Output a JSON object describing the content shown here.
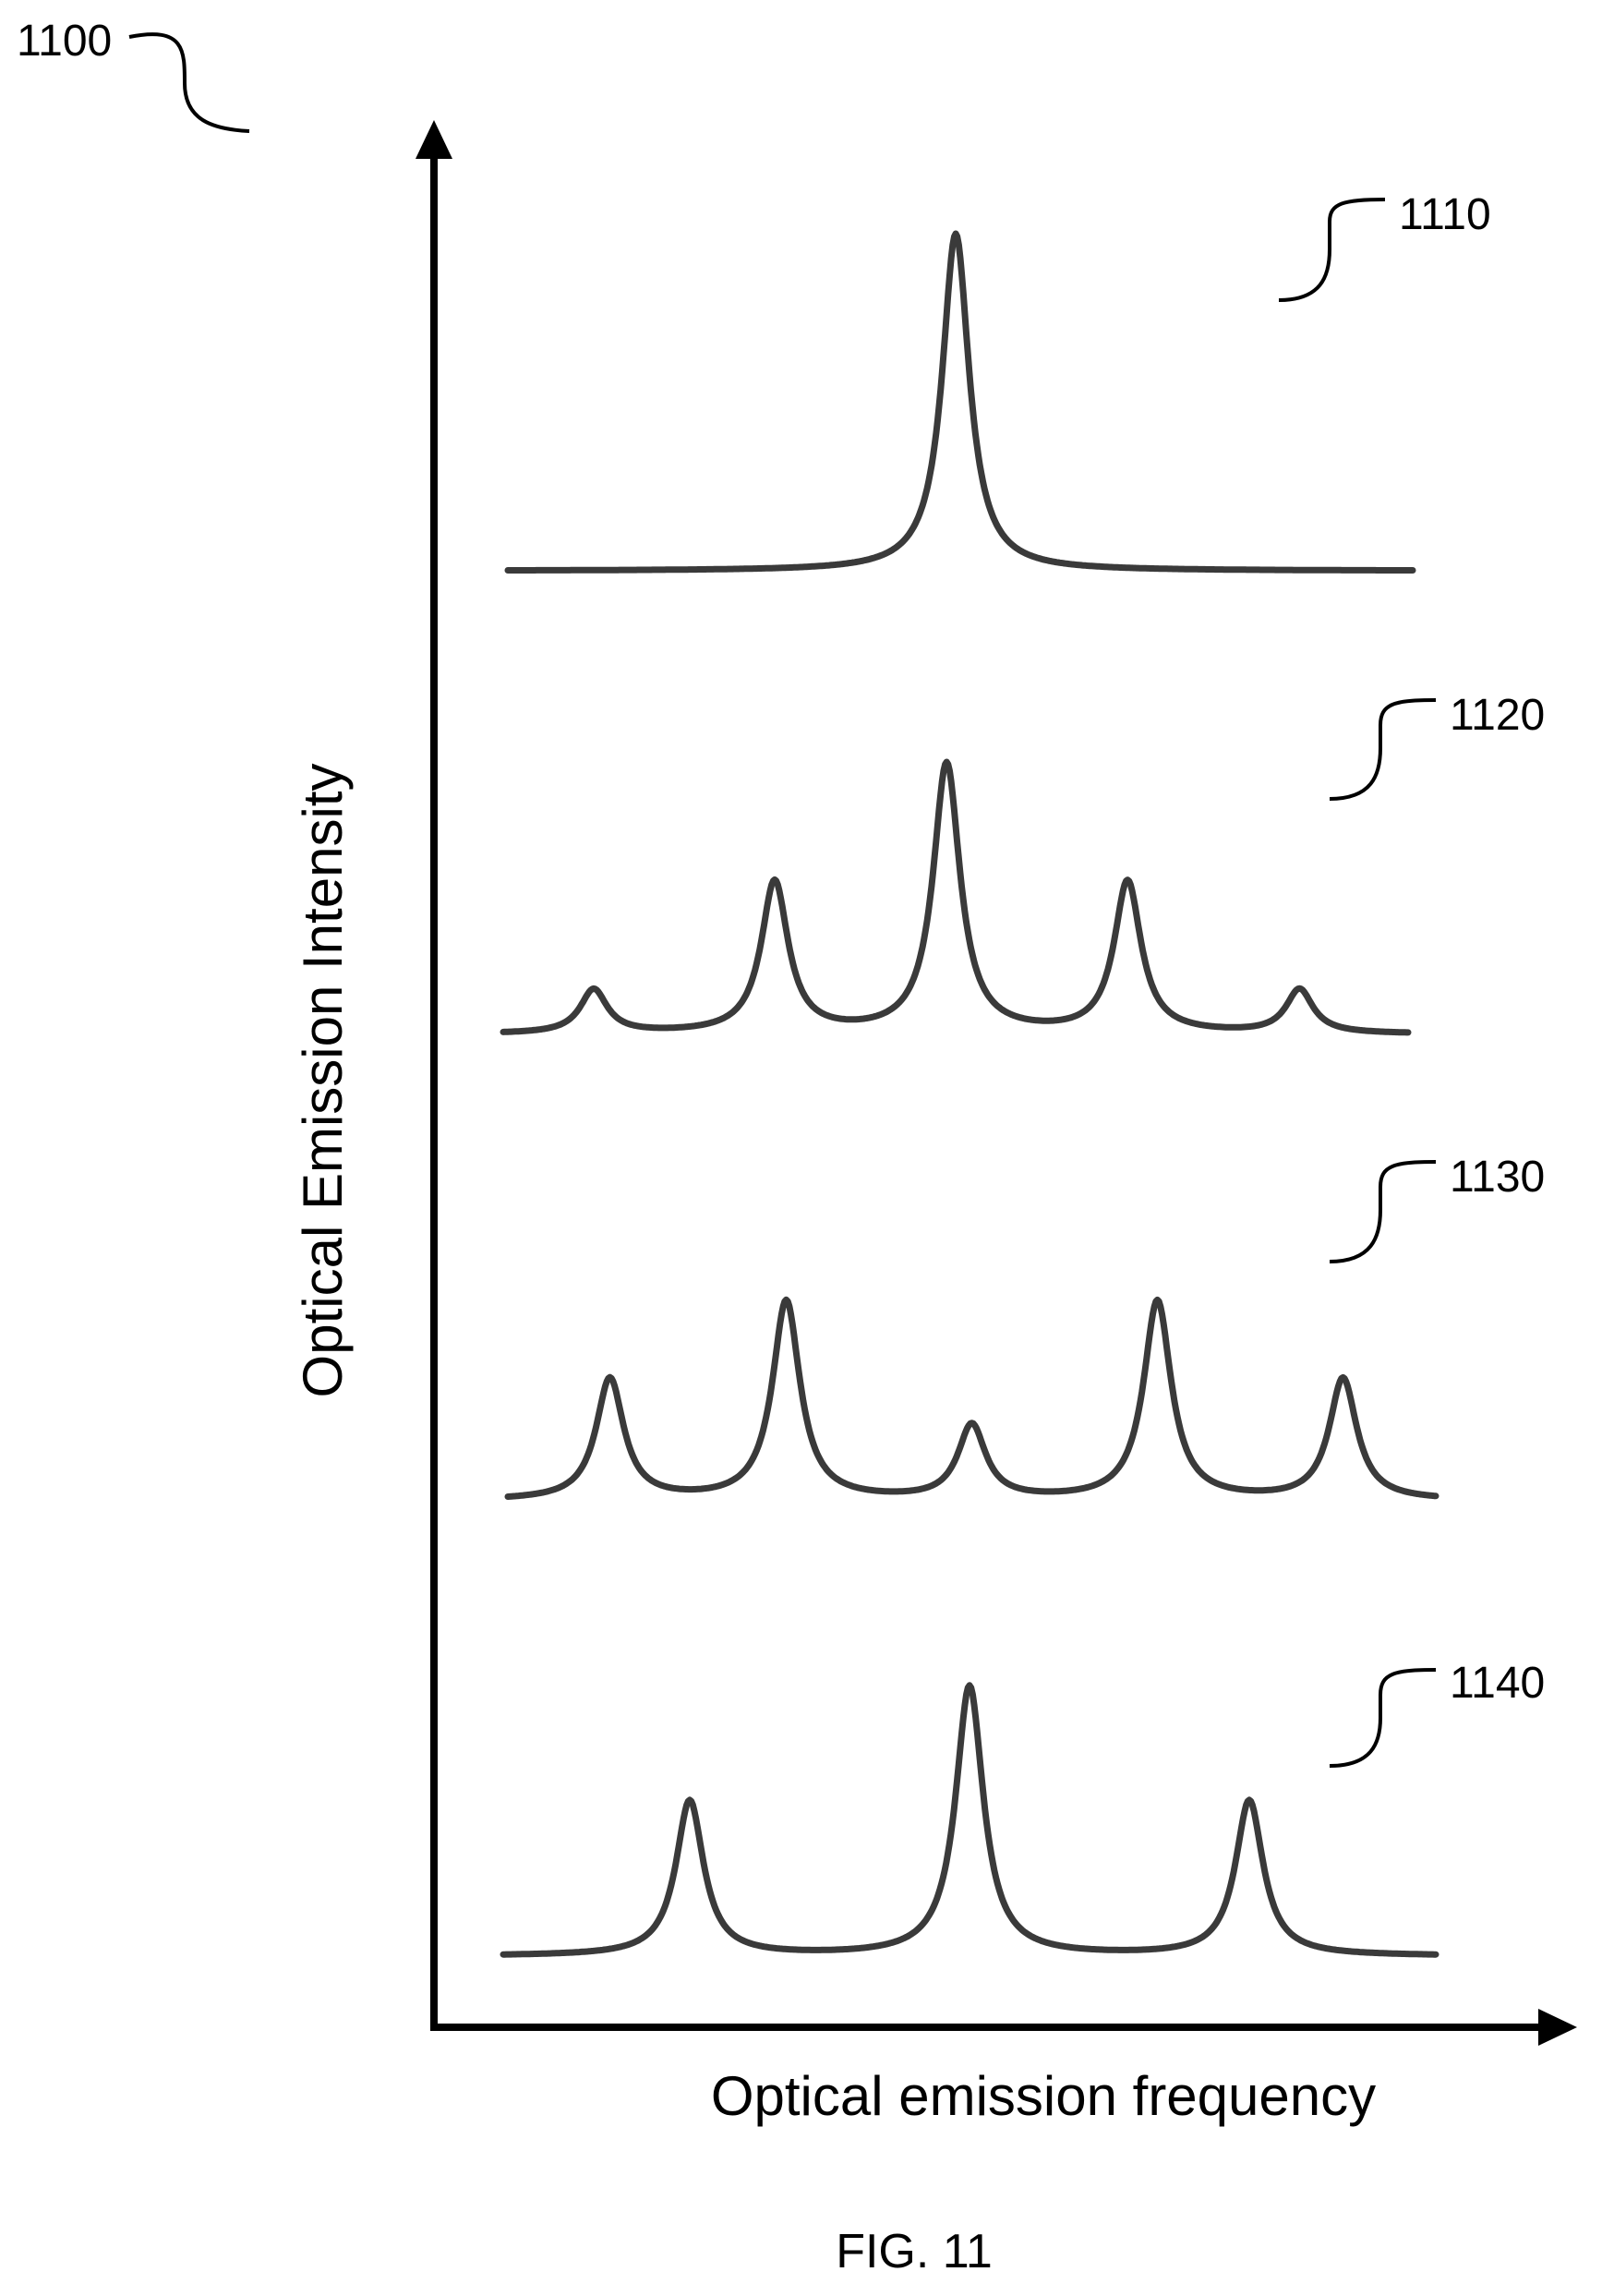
{
  "figure_ref": "1100",
  "figure_caption": "FIG. 11",
  "x_axis_label": "Optical emission frequency",
  "y_axis_label": "Optical Emission Intensity",
  "spectra": [
    {
      "ref": "1110",
      "peaks": [
        {
          "center": 0.495,
          "height": 1.0
        }
      ]
    },
    {
      "ref": "1120",
      "peaks": [
        {
          "center": 0.1,
          "height": 0.13
        },
        {
          "center": 0.3,
          "height": 0.45
        },
        {
          "center": 0.49,
          "height": 0.8
        },
        {
          "center": 0.69,
          "height": 0.45
        },
        {
          "center": 0.88,
          "height": 0.13
        }
      ]
    },
    {
      "ref": "1130",
      "peaks": [
        {
          "center": 0.11,
          "height": 0.36
        },
        {
          "center": 0.3,
          "height": 0.59
        },
        {
          "center": 0.5,
          "height": 0.22
        },
        {
          "center": 0.7,
          "height": 0.59
        },
        {
          "center": 0.9,
          "height": 0.36
        }
      ]
    },
    {
      "ref": "1140",
      "peaks": [
        {
          "center": 0.2,
          "height": 0.46
        },
        {
          "center": 0.5,
          "height": 0.8
        },
        {
          "center": 0.8,
          "height": 0.46
        }
      ]
    }
  ]
}
